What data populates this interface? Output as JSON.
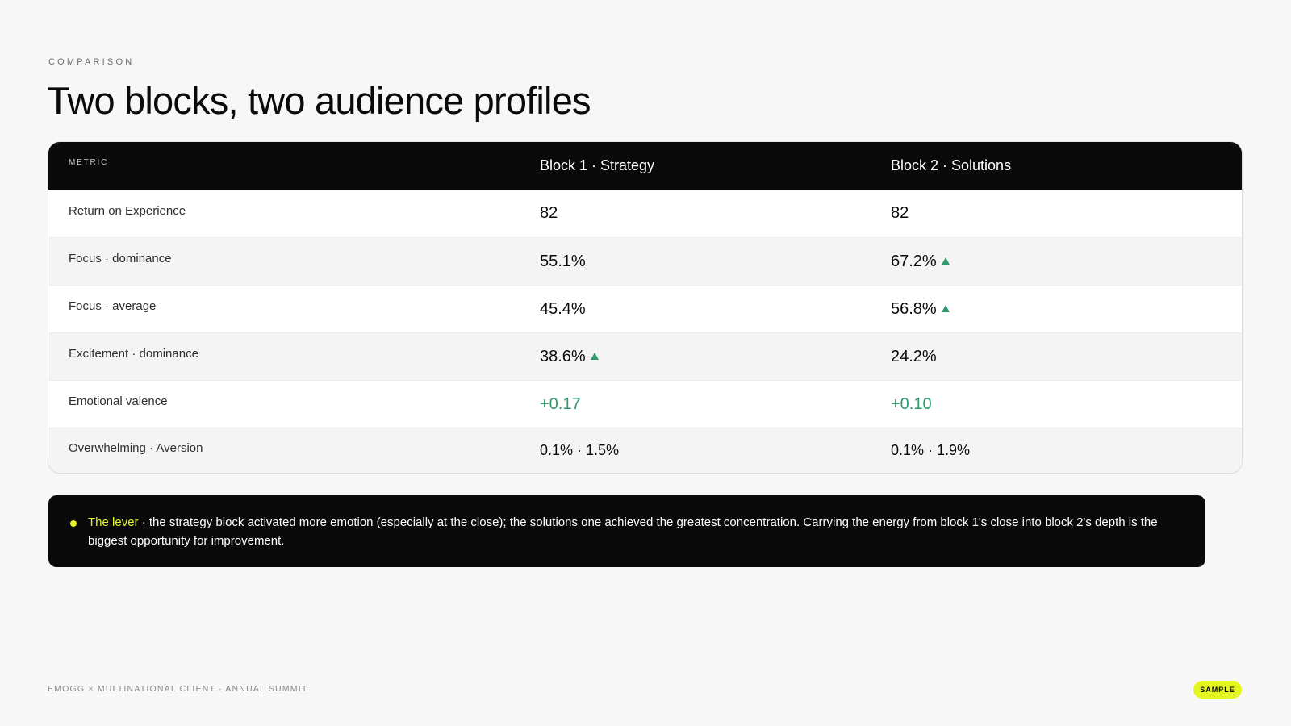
{
  "eyebrow": "COMPARISON",
  "title": "Two blocks, two audience profiles",
  "table": {
    "headers": {
      "metric": "METRIC",
      "block1": "Block 1 · Strategy",
      "block2": "Block 2 · Solutions"
    },
    "rows": [
      {
        "metric": "Return on Experience",
        "block1": "82",
        "block2": "82",
        "block1_up": false,
        "block2_up": false
      },
      {
        "metric": "Focus · dominance",
        "block1": "55.1%",
        "block2": "67.2%",
        "block1_up": false,
        "block2_up": true
      },
      {
        "metric": "Focus · average",
        "block1": "45.4%",
        "block2": "56.8%",
        "block1_up": false,
        "block2_up": true
      },
      {
        "metric": "Excitement · dominance",
        "block1": "38.6%",
        "block2": "24.2%",
        "block1_up": true,
        "block2_up": false
      },
      {
        "metric": "Emotional valence",
        "block1": "+0.17",
        "block2": "+0.10",
        "block1_up": false,
        "block2_up": false
      },
      {
        "metric": "Overwhelming · Aversion",
        "block1": "0.1% · 1.5%",
        "block2": "0.1% · 1.9%",
        "block1_up": false,
        "block2_up": false
      }
    ]
  },
  "callout": {
    "lever": "The lever",
    "text": " · the strategy block activated more emotion (especially at the close); the solutions one achieved the greatest concentration. Carrying the energy from block 1's close into block 2's depth is the biggest opportunity for improvement."
  },
  "footer": {
    "left": "EMOGG × MULTINATIONAL CLIENT · ANNUAL SUMMIT",
    "badge": "SAMPLE"
  },
  "colors": {
    "background": "#f7f7f7",
    "dark": "#0a0a0a",
    "accent_yellow": "#e4f51f",
    "positive_green": "#2e9a6b"
  }
}
